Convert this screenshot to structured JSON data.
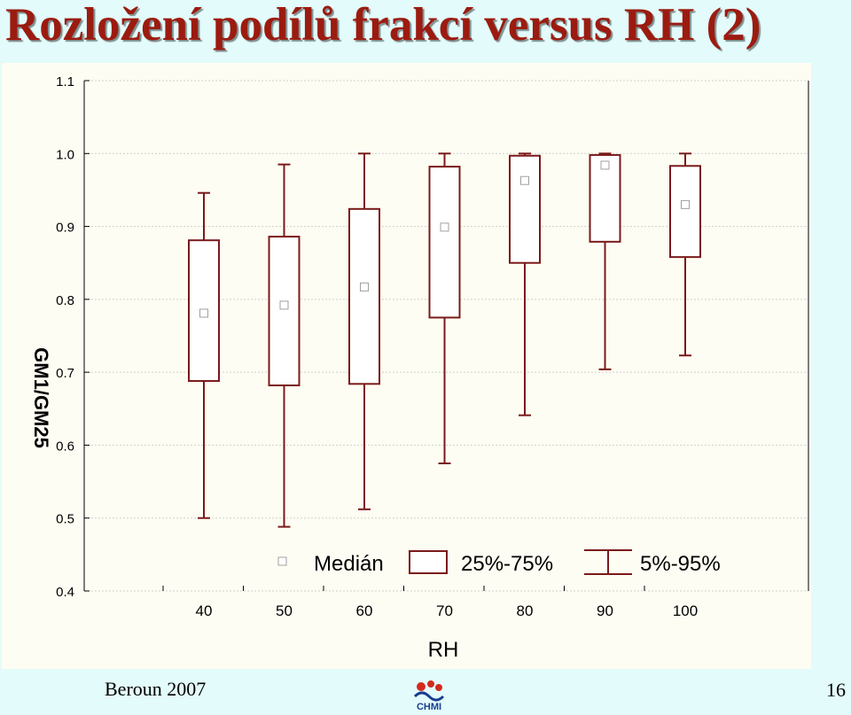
{
  "slide": {
    "title": "Rozložení podílů frakcí versus RH (2)",
    "footer_left": "Beroun 2007",
    "logo_text": "CHMI",
    "page_number": "16"
  },
  "colors": {
    "box": "#7a1a1a",
    "median_marker": "#a0a0a0",
    "panel_bg": "#fefdf3",
    "slide_bg": "#e3fbfb",
    "title": "#9c1b10"
  },
  "chart_data": {
    "type": "boxplot",
    "xlabel": "RH",
    "ylabel": "GM1/GM25",
    "ylim": [
      0.4,
      1.1
    ],
    "yticks": [
      "1.1",
      "1.0",
      "0.9",
      "0.8",
      "0.7",
      "0.6",
      "0.5",
      "0.4"
    ],
    "xticks": [
      "40",
      "50",
      "60",
      "70",
      "80",
      "90",
      "100"
    ],
    "grid": true,
    "legend_position": "bottom",
    "legend": {
      "median": "Medián",
      "box": "25%-75%",
      "whisker": "5%-95%"
    },
    "boxes": [
      {
        "x": 40,
        "p5": 0.5,
        "q1": 0.688,
        "median": 0.781,
        "q3": 0.881,
        "p95": 0.946
      },
      {
        "x": 50,
        "p5": 0.488,
        "q1": 0.682,
        "median": 0.792,
        "q3": 0.886,
        "p95": 0.985
      },
      {
        "x": 60,
        "p5": 0.512,
        "q1": 0.684,
        "median": 0.817,
        "q3": 0.924,
        "p95": 1.0
      },
      {
        "x": 70,
        "p5": 0.575,
        "q1": 0.775,
        "median": 0.899,
        "q3": 0.982,
        "p95": 1.0
      },
      {
        "x": 80,
        "p5": 0.641,
        "q1": 0.85,
        "median": 0.963,
        "q3": 0.997,
        "p95": 1.0
      },
      {
        "x": 90,
        "p5": 0.704,
        "q1": 0.879,
        "median": 0.984,
        "q3": 0.998,
        "p95": 1.0
      },
      {
        "x": 100,
        "p5": 0.723,
        "q1": 0.858,
        "median": 0.93,
        "q3": 0.983,
        "p95": 1.0
      }
    ]
  }
}
